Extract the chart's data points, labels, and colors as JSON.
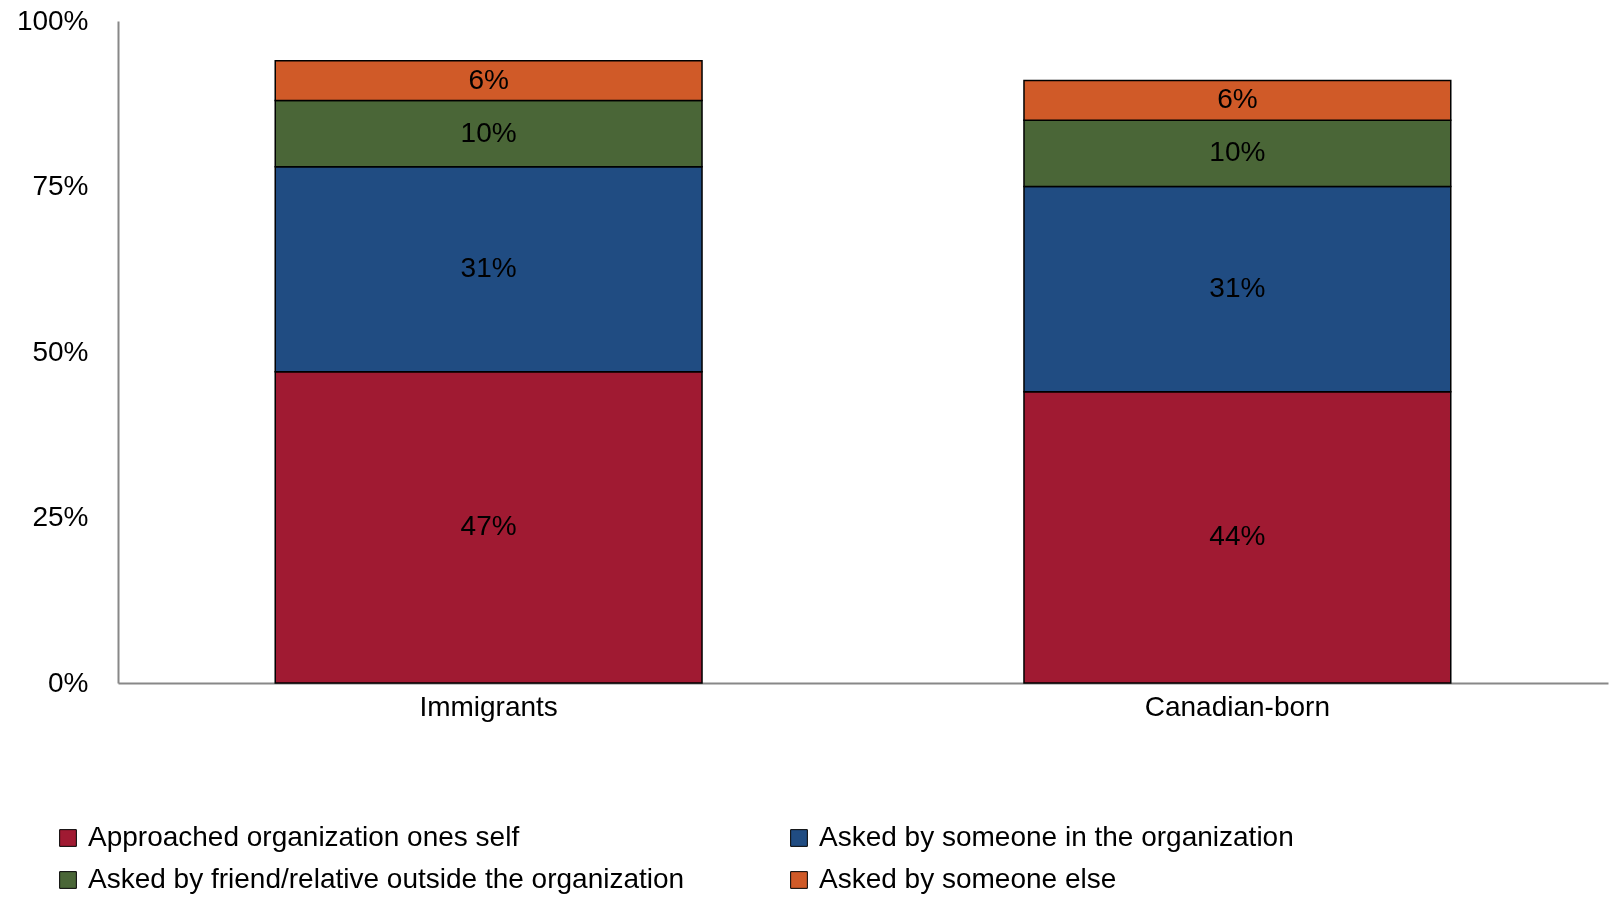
{
  "chart_data": {
    "type": "bar",
    "stacked": true,
    "categories": [
      "Immigrants",
      "Canadian-born"
    ],
    "series": [
      {
        "name": "Approached organization ones self",
        "color": "#a01a32",
        "values": [
          47,
          44
        ],
        "value_labels": [
          "47%",
          "44%"
        ]
      },
      {
        "name": "Asked by someone in the organization",
        "color": "#204c82",
        "values": [
          31,
          31
        ],
        "value_labels": [
          "31%",
          "31%"
        ]
      },
      {
        "name": "Asked by friend/relative outside the organization",
        "color": "#4a6637",
        "values": [
          10,
          10
        ],
        "value_labels": [
          "10%",
          "10%"
        ]
      },
      {
        "name": "Asked by someone else",
        "color": "#d05a28",
        "values": [
          6,
          6
        ],
        "value_labels": [
          "6%",
          "6%"
        ]
      }
    ],
    "ylim": [
      0,
      100
    ],
    "yticks": [
      {
        "value": 0,
        "label": "0%"
      },
      {
        "value": 25,
        "label": "25%"
      },
      {
        "value": 50,
        "label": "50%"
      },
      {
        "value": 75,
        "label": "75%"
      },
      {
        "value": 100,
        "label": "100%"
      }
    ],
    "grid": false,
    "legend": "bottom"
  }
}
